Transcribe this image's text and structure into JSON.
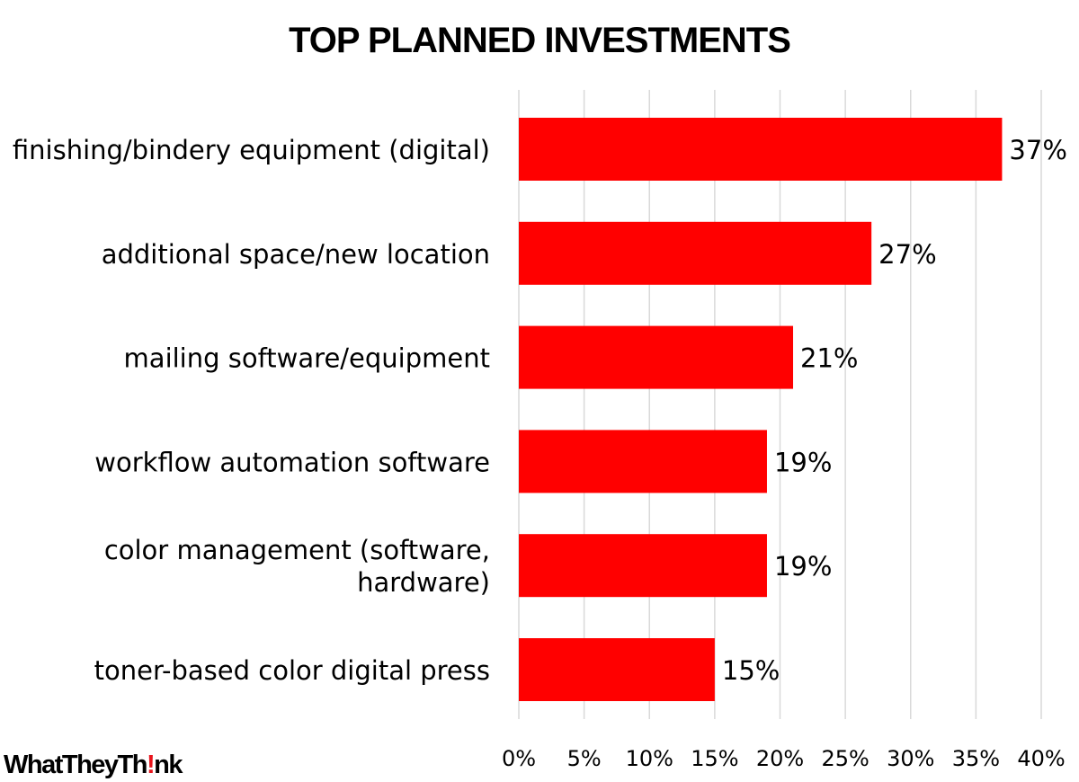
{
  "chart_data": {
    "type": "bar",
    "orientation": "horizontal",
    "title": "TOP PLANNED INVESTMENTS",
    "categories": [
      [
        "finishing/bindery equipment (digital)"
      ],
      [
        "additional space/new location"
      ],
      [
        "mailing software/equipment"
      ],
      [
        "workflow automation software"
      ],
      [
        "color management (software,",
        "hardware)"
      ],
      [
        "toner-based color digital press"
      ]
    ],
    "values": [
      37,
      27,
      21,
      19,
      19,
      15
    ],
    "value_labels": [
      "37%",
      "27%",
      "21%",
      "19%",
      "19%",
      "15%"
    ],
    "xlim": [
      0,
      40
    ],
    "ticks": [
      0,
      5,
      10,
      15,
      20,
      25,
      30,
      35,
      40
    ],
    "tick_labels": [
      "0%",
      "5%",
      "10%",
      "15%",
      "20%",
      "25%",
      "30%",
      "35%",
      "40%"
    ],
    "bar_color": "#ff0000",
    "gridlines": true,
    "legend": "none"
  },
  "brand": {
    "logo_parts": [
      "WhatTheyTh",
      "!",
      "nk"
    ],
    "logo_accent_color": "#e8141c"
  }
}
